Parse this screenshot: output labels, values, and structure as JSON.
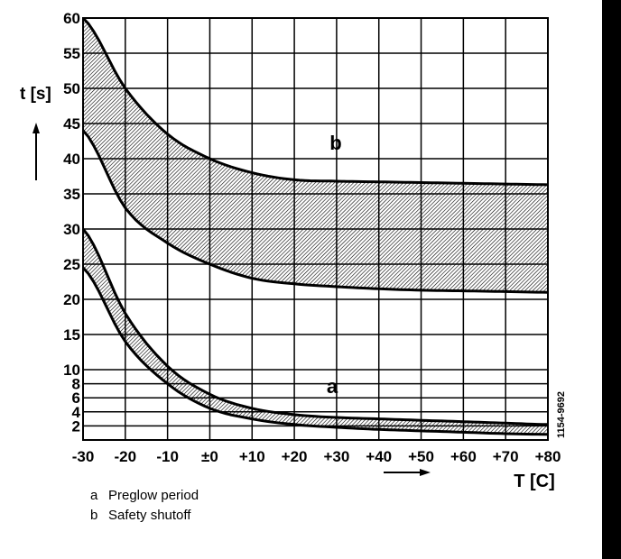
{
  "chart_data": {
    "type": "area",
    "title": "",
    "xlabel": "T [C]",
    "ylabel": "t [s]",
    "xlim": [
      -30,
      80
    ],
    "ylim": [
      0,
      60
    ],
    "grid": true,
    "x_ticks": [
      "-30",
      "-20",
      "-10",
      "±0",
      "+10",
      "+20",
      "+30",
      "+40",
      "+50",
      "+60",
      "+70",
      "+80"
    ],
    "x_tick_values": [
      -30,
      -20,
      -10,
      0,
      10,
      20,
      30,
      40,
      50,
      60,
      70,
      80
    ],
    "y_ticks": [
      "2",
      "4",
      "6",
      "8",
      "10",
      "15",
      "20",
      "25",
      "30",
      "35",
      "40",
      "45",
      "50",
      "55",
      "60"
    ],
    "y_tick_values": [
      2,
      4,
      6,
      8,
      10,
      15,
      20,
      25,
      30,
      35,
      40,
      45,
      50,
      55,
      60
    ],
    "x": [
      -30,
      -20,
      -10,
      0,
      10,
      20,
      30,
      40,
      50,
      60,
      70,
      80
    ],
    "series": [
      {
        "name": "b",
        "label": "Safety shutoff",
        "upper": [
          60,
          50,
          43.5,
          40,
          38,
          37,
          36.8,
          36.7,
          36.6,
          36.5,
          36.4,
          36.3
        ],
        "lower": [
          44,
          33,
          28,
          25,
          23,
          22.2,
          21.8,
          21.5,
          21.3,
          21.2,
          21.1,
          21
        ]
      },
      {
        "name": "a",
        "label": "Preglow period",
        "upper": [
          30,
          18,
          10.5,
          6.5,
          4.5,
          3.6,
          3.2,
          3,
          2.8,
          2.6,
          2.4,
          2.2
        ],
        "lower": [
          24.5,
          14,
          8,
          4.5,
          3,
          2.2,
          1.8,
          1.5,
          1.3,
          1.1,
          0.9,
          0.8
        ]
      }
    ],
    "annotations": [
      "b",
      "a"
    ],
    "figure_code": "1154-9692",
    "legend": [
      {
        "key": "a",
        "text": "Preglow period"
      },
      {
        "key": "b",
        "text": "Safety shutoff"
      }
    ]
  }
}
